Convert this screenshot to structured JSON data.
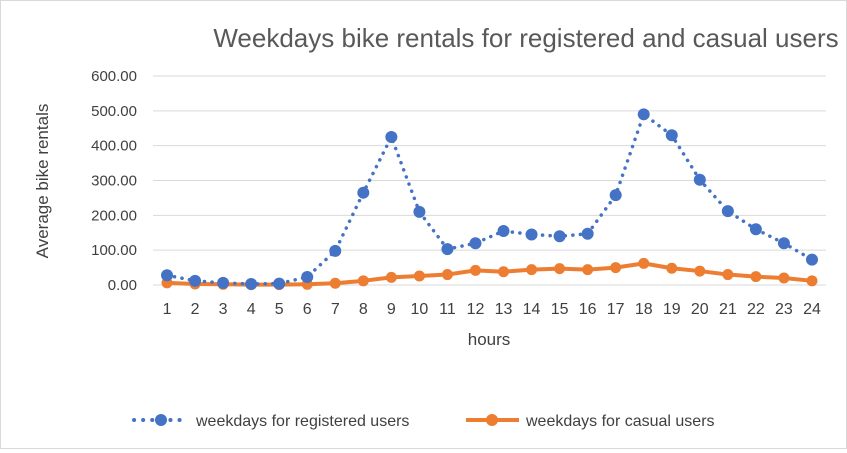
{
  "chart_data": {
    "type": "line",
    "title": "Weekdays bike rentals for registered and casual users",
    "xlabel": "hours",
    "ylabel": "Average  bike rentals",
    "categories": [
      "1",
      "2",
      "3",
      "4",
      "5",
      "6",
      "7",
      "8",
      "9",
      "10",
      "11",
      "12",
      "13",
      "14",
      "15",
      "16",
      "17",
      "18",
      "19",
      "20",
      "21",
      "22",
      "23",
      "24"
    ],
    "ylim": [
      0,
      600
    ],
    "yticks": [
      "0.00",
      "100.00",
      "200.00",
      "300.00",
      "400.00",
      "500.00",
      "600.00"
    ],
    "grid": true,
    "legend_position": "bottom",
    "series": [
      {
        "name": "weekdays for registered users",
        "color": "#4472c4",
        "style": "dotted-with-markers",
        "values": [
          28,
          12,
          6,
          3,
          4,
          23,
          98,
          265,
          425,
          210,
          103,
          120,
          155,
          145,
          140,
          147,
          258,
          490,
          430,
          302,
          212,
          160,
          120,
          73
        ]
      },
      {
        "name": "weekdays for casual users",
        "color": "#ed7d31",
        "style": "solid-with-markers",
        "values": [
          6,
          3,
          2,
          1,
          1,
          2,
          5,
          12,
          22,
          26,
          30,
          42,
          38,
          44,
          47,
          44,
          50,
          62,
          48,
          40,
          30,
          24,
          20,
          12
        ]
      }
    ]
  }
}
